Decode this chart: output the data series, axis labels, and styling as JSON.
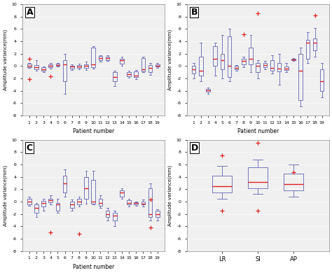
{
  "panels": [
    "A",
    "B",
    "C",
    "D"
  ],
  "xlabel": "Patient number",
  "ylabel": "Amplitude variance(mm)",
  "ylim": [
    -8,
    10
  ],
  "yticks": [
    -8,
    -6,
    -4,
    -2,
    0,
    2,
    4,
    6,
    8,
    10
  ],
  "patients": [
    1,
    2,
    3,
    4,
    5,
    6,
    7,
    8,
    9,
    10,
    11,
    12,
    13,
    14,
    15,
    16,
    17,
    18,
    19
  ],
  "box_color": "#7777bb",
  "median_color": "#dd2222",
  "flier_color": "#dd2222",
  "bg_color": "#f0f0f0",
  "panel_A": {
    "medians": [
      0.1,
      -0.2,
      -0.5,
      0.1,
      0.2,
      0.3,
      -0.1,
      -0.1,
      0.0,
      0.3,
      1.3,
      1.3,
      -1.8,
      0.9,
      -1.3,
      -1.5,
      -0.5,
      -0.3,
      0.1
    ],
    "q1": [
      -0.2,
      -0.5,
      -0.8,
      -0.2,
      0.0,
      -2.5,
      -0.4,
      -0.3,
      -0.3,
      -0.2,
      0.9,
      1.0,
      -2.5,
      0.4,
      -1.7,
      -1.8,
      -0.9,
      -1.0,
      -0.1
    ],
    "q3": [
      0.4,
      0.2,
      -0.2,
      0.3,
      0.4,
      1.0,
      0.1,
      0.2,
      0.3,
      3.0,
      1.6,
      1.5,
      -1.0,
      1.2,
      -1.0,
      -0.9,
      1.3,
      0.2,
      0.3
    ],
    "whislo": [
      -0.3,
      -0.7,
      -1.0,
      -0.4,
      -0.1,
      -4.5,
      -0.6,
      -0.5,
      -0.6,
      -0.4,
      0.7,
      0.8,
      -3.2,
      0.1,
      -1.9,
      -2.1,
      -1.0,
      -1.4,
      -0.3
    ],
    "whishi": [
      0.5,
      0.9,
      -0.1,
      0.5,
      0.5,
      2.0,
      0.3,
      0.4,
      0.7,
      3.2,
      1.8,
      1.7,
      -0.8,
      1.5,
      -0.7,
      -0.6,
      1.5,
      0.5,
      0.5
    ],
    "fliers": [
      [
        1.2,
        -2.1
      ],
      [],
      [],
      [
        -1.7
      ],
      [],
      [],
      [],
      [],
      [],
      [],
      [],
      [],
      [],
      [],
      [],
      [],
      [],
      [],
      []
    ]
  },
  "panel_B": {
    "medians": [
      -0.5,
      -0.7,
      -3.9,
      1.2,
      1.0,
      0.0,
      -0.3,
      0.8,
      1.2,
      0.0,
      0.2,
      -0.3,
      -0.4,
      -0.4,
      1.1,
      -0.8,
      3.8,
      3.8,
      -2.5
    ],
    "q1": [
      -1.2,
      -1.5,
      -4.1,
      0.0,
      -0.5,
      -1.8,
      -0.5,
      0.3,
      0.3,
      -1.0,
      -0.2,
      -0.7,
      -0.9,
      -0.6,
      1.0,
      -5.5,
      1.2,
      2.5,
      -4.0
    ],
    "q3": [
      0.0,
      1.5,
      -3.7,
      3.2,
      2.0,
      4.8,
      0.0,
      1.2,
      3.0,
      0.5,
      0.5,
      1.0,
      0.5,
      -0.1,
      1.2,
      2.0,
      4.2,
      4.5,
      -0.5
    ],
    "whislo": [
      -2.0,
      -2.5,
      -4.5,
      -1.5,
      -2.0,
      -2.5,
      -0.8,
      -0.2,
      -1.0,
      -2.0,
      -0.5,
      -1.2,
      -3.0,
      -1.0,
      0.8,
      -6.5,
      0.5,
      1.5,
      -5.0
    ],
    "whishi": [
      0.5,
      3.8,
      -3.5,
      3.8,
      5.0,
      6.0,
      0.2,
      1.5,
      5.0,
      1.0,
      0.8,
      1.8,
      2.0,
      0.5,
      1.3,
      3.0,
      5.5,
      6.2,
      0.5
    ],
    "fliers": [
      [],
      [],
      [],
      [],
      [],
      [],
      [],
      [
        5.2
      ],
      [],
      [
        8.5
      ],
      [],
      [],
      [],
      [],
      [],
      [],
      [],
      [
        8.2
      ],
      []
    ]
  },
  "panel_C": {
    "medians": [
      0.0,
      -1.0,
      -0.2,
      0.2,
      -0.5,
      3.0,
      -0.5,
      0.0,
      2.2,
      0.0,
      -0.2,
      -2.0,
      -2.3,
      1.5,
      -0.2,
      -0.2,
      -0.3,
      -2.0,
      -2.0
    ],
    "q1": [
      -0.4,
      -1.8,
      -0.8,
      -0.1,
      -1.5,
      1.5,
      -1.0,
      -0.5,
      0.5,
      -0.3,
      -0.7,
      -2.5,
      -3.0,
      0.8,
      -0.5,
      -0.4,
      -0.5,
      -2.5,
      -2.5
    ],
    "q3": [
      0.5,
      -0.5,
      0.1,
      0.5,
      -0.2,
      4.2,
      0.0,
      0.5,
      4.0,
      3.5,
      0.5,
      -1.5,
      -1.8,
      1.8,
      0.2,
      -0.1,
      0.0,
      2.2,
      -1.5
    ],
    "whislo": [
      -0.7,
      -2.5,
      -1.5,
      -0.4,
      -1.8,
      0.8,
      -1.5,
      -0.8,
      -0.3,
      -0.5,
      -1.0,
      -3.0,
      -4.0,
      0.5,
      -0.8,
      -0.7,
      -0.8,
      -3.0,
      -3.0
    ],
    "whishi": [
      0.8,
      -0.2,
      0.5,
      1.0,
      0.5,
      5.2,
      0.3,
      0.8,
      5.0,
      5.0,
      1.0,
      -1.0,
      -1.5,
      2.2,
      0.5,
      0.0,
      0.3,
      3.0,
      -1.2
    ],
    "fliers": [
      [],
      [],
      [],
      [
        -5.0
      ],
      [],
      [],
      [],
      [
        -5.2
      ],
      [],
      [],
      [],
      [],
      [],
      [],
      [],
      [],
      [],
      [
        0.3,
        -4.2
      ],
      []
    ]
  },
  "panel_D": {
    "labels": [
      "LR",
      "SI",
      "AP"
    ],
    "medians": [
      2.5,
      3.2,
      2.8
    ],
    "q1": [
      1.5,
      2.2,
      1.8
    ],
    "q3": [
      4.2,
      5.5,
      4.5
    ],
    "whislo": [
      0.5,
      1.2,
      0.8
    ],
    "whishi": [
      5.8,
      6.8,
      6.0
    ],
    "fliers": [
      [
        -1.5,
        7.5
      ],
      [
        -1.5,
        9.5
      ],
      [
        4.8
      ]
    ]
  }
}
